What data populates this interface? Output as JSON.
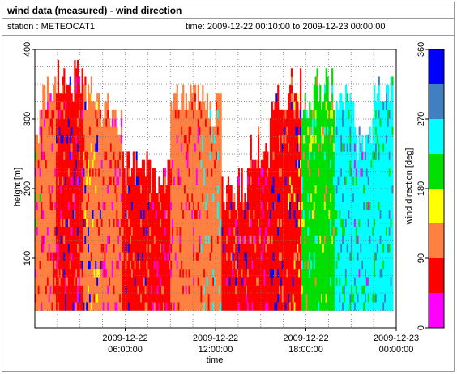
{
  "header": {
    "title": "wind data (measured) - wind direction",
    "station": "station : METEOCAT1",
    "time_range": "time: 2009-12-22 00:10:00 to 2009-12-23 00:00:00"
  },
  "chart_data": {
    "type": "heatmap",
    "title": "",
    "xlabel": "time",
    "ylabel": "height [m]",
    "colorbar_label": "wind direction [deg]",
    "xlim": [
      0,
      24
    ],
    "ylim": [
      0,
      400
    ],
    "y_ticks": [
      100,
      200,
      300,
      400
    ],
    "x_ticks": [
      {
        "hour": 6,
        "line1": "2009-12-22",
        "line2": "06:00:00"
      },
      {
        "hour": 12,
        "line1": "2009-12-22",
        "line2": "12:00:00"
      },
      {
        "hour": 18,
        "line1": "2009-12-22",
        "line2": "18:00:00"
      },
      {
        "hour": 24,
        "line1": "2009-12-23",
        "line2": "00:00:00"
      }
    ],
    "colorbar_ticks": [
      0,
      90,
      180,
      270,
      360
    ],
    "colorbar_bins": [
      {
        "from": 0,
        "to": 45,
        "color": "#ff00ff"
      },
      {
        "from": 45,
        "to": 90,
        "color": "#ff0000"
      },
      {
        "from": 90,
        "to": 135,
        "color": "#ff8040"
      },
      {
        "from": 135,
        "to": 180,
        "color": "#ffff00"
      },
      {
        "from": 180,
        "to": 225,
        "color": "#00e000"
      },
      {
        "from": 225,
        "to": 270,
        "color": "#00ffff"
      },
      {
        "from": 270,
        "to": 315,
        "color": "#4080c0"
      },
      {
        "from": 315,
        "to": 360,
        "color": "#0000ff"
      }
    ],
    "grid": true,
    "data_range": {
      "height_min": 25,
      "height_bin": 12
    },
    "segments": [
      {
        "start": 0.0,
        "end": 0.4,
        "top": 275,
        "main": "#ff8040",
        "accents": [
          "#ff0000",
          "#00e000",
          "#ff00ff"
        ]
      },
      {
        "start": 0.4,
        "end": 1.4,
        "top": 340,
        "main": "#ff8040",
        "accents": [
          "#ff0000",
          "#ff00ff"
        ]
      },
      {
        "start": 1.4,
        "end": 3.2,
        "top": 350,
        "main": "#ff0000",
        "accents": [
          "#ff8040",
          "#ff00ff",
          "#0000ff"
        ]
      },
      {
        "start": 3.2,
        "end": 4.4,
        "top": 330,
        "main": "#ff8040",
        "accents": [
          "#ff0000",
          "#ffff00",
          "#0000ff"
        ]
      },
      {
        "start": 4.4,
        "end": 5.8,
        "top": 300,
        "main": "#ff8040",
        "accents": [
          "#ff0000",
          "#ff00ff"
        ]
      },
      {
        "start": 5.8,
        "end": 7.6,
        "top": 225,
        "main": "#ff0000",
        "accents": [
          "#ff8040",
          "#0000ff"
        ]
      },
      {
        "start": 7.6,
        "end": 9.0,
        "top": 210,
        "main": "#ff0000",
        "accents": [
          "#ff8040",
          "#ff00ff"
        ]
      },
      {
        "start": 9.0,
        "end": 11.0,
        "top": 330,
        "main": "#ff8040",
        "accents": [
          "#ff0000",
          "#ff00ff"
        ]
      },
      {
        "start": 11.0,
        "end": 12.4,
        "top": 310,
        "main": "#ff8040",
        "accents": [
          "#ff0000",
          "#00ffff"
        ]
      },
      {
        "start": 12.4,
        "end": 14.2,
        "top": 195,
        "main": "#ff0000",
        "accents": [
          "#ff8040",
          "#ff00ff",
          "#0000ff"
        ]
      },
      {
        "start": 14.2,
        "end": 15.6,
        "top": 250,
        "main": "#ff0000",
        "accents": [
          "#ff8040",
          "#ff00ff"
        ]
      },
      {
        "start": 15.6,
        "end": 16.8,
        "top": 320,
        "main": "#ff0000",
        "accents": [
          "#ff8040",
          "#0000ff"
        ]
      },
      {
        "start": 16.8,
        "end": 17.7,
        "top": 340,
        "main": "#ff0000",
        "accents": [
          "#ff8040",
          "#ffff00",
          "#0000ff"
        ]
      },
      {
        "start": 17.7,
        "end": 18.6,
        "top": 320,
        "main": "#00e000",
        "accents": [
          "#ffff00",
          "#ff8040",
          "#00ffff"
        ]
      },
      {
        "start": 18.6,
        "end": 19.9,
        "top": 335,
        "main": "#00e000",
        "accents": [
          "#ffff00",
          "#00ffff",
          "#ff8040"
        ]
      },
      {
        "start": 19.9,
        "end": 21.2,
        "top": 310,
        "main": "#00ffff",
        "accents": [
          "#00e000",
          "#4080c0"
        ]
      },
      {
        "start": 21.2,
        "end": 22.4,
        "top": 265,
        "main": "#00ffff",
        "accents": [
          "#4080c0",
          "#00e000",
          "#ff00ff"
        ]
      },
      {
        "start": 22.4,
        "end": 23.8,
        "top": 330,
        "main": "#00ffff",
        "accents": [
          "#00e000",
          "#4080c0"
        ]
      }
    ]
  }
}
